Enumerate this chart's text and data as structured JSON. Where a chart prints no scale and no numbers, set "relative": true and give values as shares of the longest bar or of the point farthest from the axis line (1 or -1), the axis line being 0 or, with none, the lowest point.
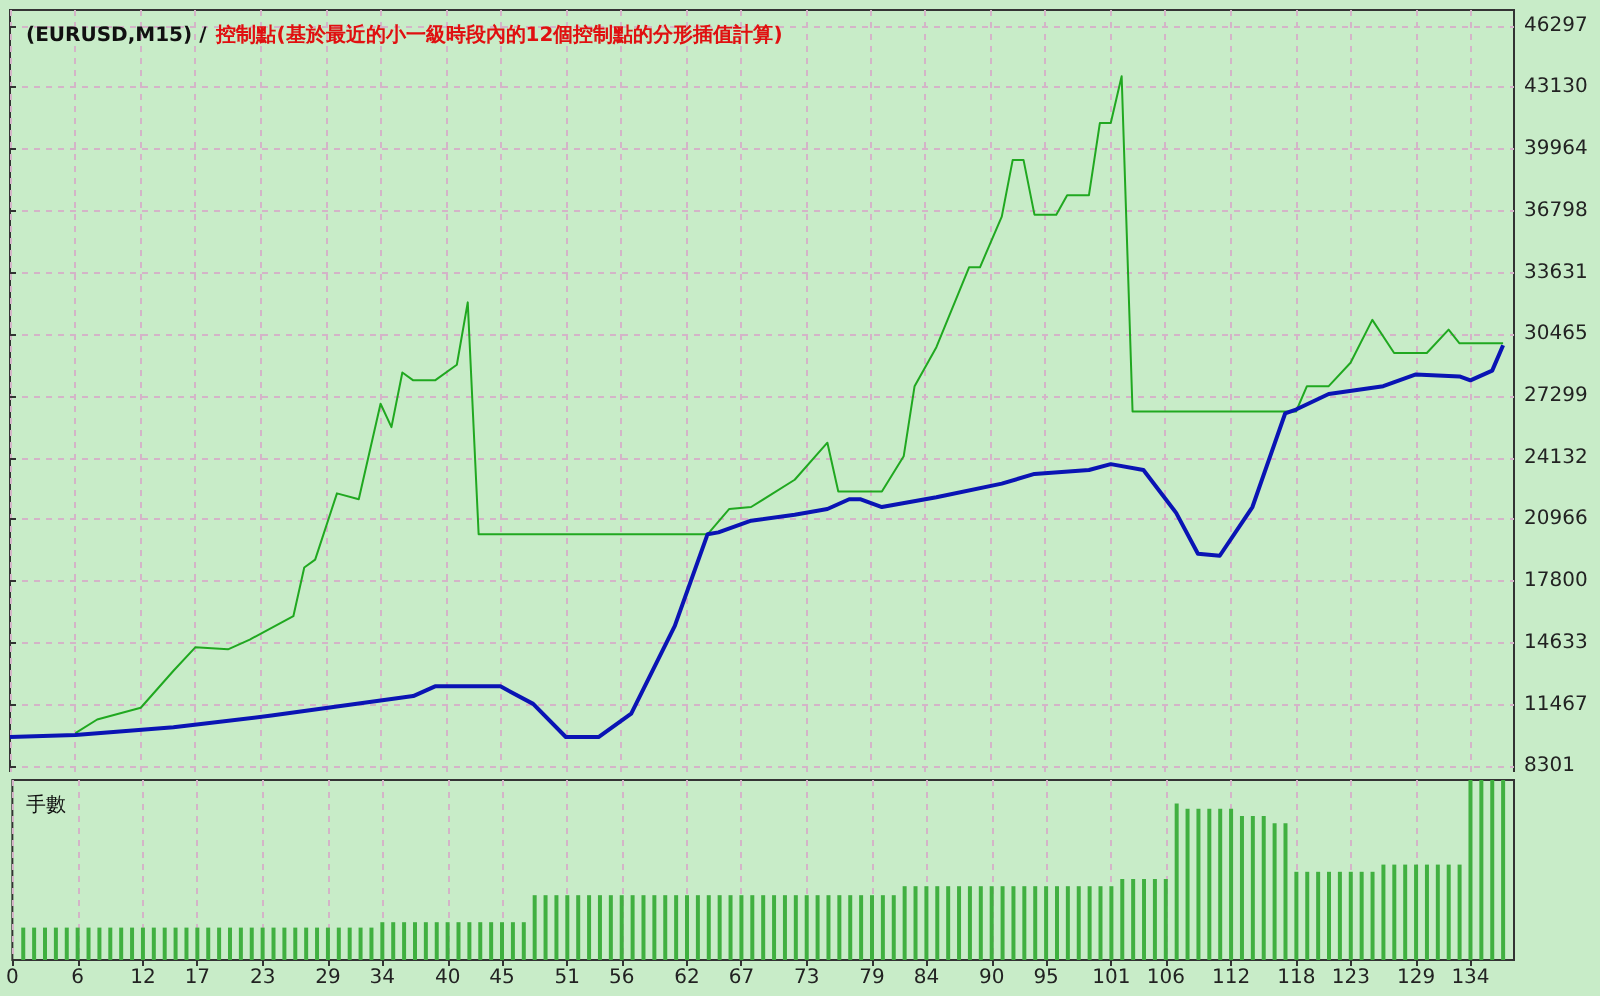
{
  "chart_data": [
    {
      "type": "line",
      "title": "(EURUSD,M15) /",
      "subtitle": "控制點(基於最近的小一級時段內的12個控制點的分形插值計算)",
      "xlim": [
        0,
        138
      ],
      "xticks": [
        0,
        6,
        12,
        17,
        23,
        29,
        34,
        40,
        45,
        51,
        56,
        62,
        67,
        73,
        79,
        84,
        90,
        95,
        101,
        106,
        112,
        118,
        123,
        129,
        134
      ],
      "ylim": [
        7800,
        47100
      ],
      "yticks": [
        8301,
        11467,
        14633,
        17800,
        20966,
        24132,
        27299,
        30465,
        33631,
        36798,
        39964,
        43130,
        46297
      ],
      "tick_labels": "y",
      "grid": true,
      "series": [
        {
          "color": "#20a820",
          "x": [
            6,
            8,
            12,
            15,
            17,
            20,
            22,
            26,
            27,
            28,
            30,
            32,
            34,
            35,
            36,
            37,
            39,
            41,
            42,
            43,
            64,
            66,
            68,
            72,
            75,
            76,
            80,
            82,
            83,
            85,
            88,
            89,
            91,
            92,
            93,
            94,
            96,
            97,
            99,
            100,
            101,
            102,
            103,
            118,
            119,
            121,
            123,
            125,
            127,
            130,
            132,
            133,
            137
          ],
          "values": [
            10000,
            10700,
            11300,
            13200,
            14400,
            14300,
            14800,
            16000,
            18500,
            18900,
            22300,
            22000,
            26900,
            25700,
            28500,
            28100,
            28100,
            28900,
            32100,
            20200,
            20200,
            21500,
            21600,
            23000,
            24900,
            22400,
            22400,
            24200,
            27800,
            29800,
            33900,
            33900,
            36500,
            39400,
            39400,
            36600,
            36600,
            37600,
            37600,
            41300,
            41300,
            43700,
            26500,
            26500,
            27800,
            27800,
            29000,
            31200,
            29500,
            29500,
            30700,
            30000,
            30000
          ]
        },
        {
          "color": "#0a14b4",
          "x": [
            0,
            6,
            15,
            24,
            37,
            39,
            45,
            48,
            51,
            54,
            57,
            61,
            64,
            65,
            68,
            72,
            75,
            77,
            78,
            80,
            85,
            91,
            94,
            99,
            101,
            104,
            107,
            109,
            111,
            114,
            117,
            118,
            121,
            126,
            129,
            133,
            134,
            136,
            137
          ],
          "values": [
            9800,
            9900,
            10300,
            10900,
            11900,
            12400,
            12400,
            11500,
            9800,
            9800,
            11000,
            15500,
            20200,
            20300,
            20900,
            21200,
            21500,
            22000,
            22000,
            21600,
            22100,
            22800,
            23300,
            23500,
            23800,
            23500,
            21300,
            19200,
            19100,
            21600,
            26400,
            26600,
            27400,
            27800,
            28400,
            28300,
            28100,
            28600,
            29900
          ]
        }
      ]
    },
    {
      "type": "bar",
      "title": "手數",
      "relative": true,
      "color": "#40b040",
      "xlim": [
        0,
        138
      ],
      "xticks": [
        0,
        6,
        12,
        17,
        23,
        29,
        34,
        40,
        45,
        51,
        56,
        62,
        67,
        73,
        79,
        84,
        90,
        95,
        101,
        106,
        112,
        118,
        123,
        129,
        134
      ],
      "tick_labels": "x",
      "grid": "x",
      "x": [
        1,
        2,
        3,
        4,
        5,
        6,
        7,
        8,
        9,
        10,
        11,
        12,
        13,
        14,
        15,
        16,
        17,
        18,
        19,
        20,
        21,
        22,
        23,
        24,
        25,
        26,
        27,
        28,
        29,
        30,
        31,
        32,
        33,
        34,
        35,
        36,
        37,
        38,
        39,
        40,
        41,
        42,
        43,
        44,
        45,
        46,
        47,
        48,
        49,
        50,
        51,
        52,
        53,
        54,
        55,
        56,
        57,
        58,
        59,
        60,
        61,
        62,
        63,
        64,
        65,
        66,
        67,
        68,
        69,
        70,
        71,
        72,
        73,
        74,
        75,
        76,
        77,
        78,
        79,
        80,
        81,
        82,
        83,
        84,
        85,
        86,
        87,
        88,
        89,
        90,
        91,
        92,
        93,
        94,
        95,
        96,
        97,
        98,
        99,
        100,
        101,
        102,
        103,
        104,
        105,
        106,
        107,
        108,
        109,
        110,
        111,
        112,
        113,
        114,
        115,
        116,
        117,
        118,
        119,
        120,
        121,
        122,
        123,
        124,
        125,
        126,
        127,
        128,
        129,
        130,
        131,
        132,
        133,
        134,
        135,
        136,
        137
      ],
      "values": [
        0.18,
        0.18,
        0.18,
        0.18,
        0.18,
        0.18,
        0.18,
        0.18,
        0.18,
        0.18,
        0.18,
        0.18,
        0.18,
        0.18,
        0.18,
        0.18,
        0.18,
        0.18,
        0.18,
        0.18,
        0.18,
        0.18,
        0.18,
        0.18,
        0.18,
        0.18,
        0.18,
        0.18,
        0.18,
        0.18,
        0.18,
        0.18,
        0.18,
        0.21,
        0.21,
        0.21,
        0.21,
        0.21,
        0.21,
        0.21,
        0.21,
        0.21,
        0.21,
        0.21,
        0.21,
        0.21,
        0.21,
        0.36,
        0.36,
        0.36,
        0.36,
        0.36,
        0.36,
        0.36,
        0.36,
        0.36,
        0.36,
        0.36,
        0.36,
        0.36,
        0.36,
        0.36,
        0.36,
        0.36,
        0.36,
        0.36,
        0.36,
        0.36,
        0.36,
        0.36,
        0.36,
        0.36,
        0.36,
        0.36,
        0.36,
        0.36,
        0.36,
        0.36,
        0.36,
        0.36,
        0.36,
        0.41,
        0.41,
        0.41,
        0.41,
        0.41,
        0.41,
        0.41,
        0.41,
        0.41,
        0.41,
        0.41,
        0.41,
        0.41,
        0.41,
        0.41,
        0.41,
        0.41,
        0.41,
        0.41,
        0.41,
        0.45,
        0.45,
        0.45,
        0.45,
        0.45,
        0.87,
        0.84,
        0.84,
        0.84,
        0.84,
        0.84,
        0.8,
        0.8,
        0.8,
        0.76,
        0.76,
        0.49,
        0.49,
        0.49,
        0.49,
        0.49,
        0.49,
        0.49,
        0.49,
        0.53,
        0.53,
        0.53,
        0.53,
        0.53,
        0.53,
        0.53,
        0.53,
        1,
        1,
        1,
        1
      ]
    }
  ]
}
